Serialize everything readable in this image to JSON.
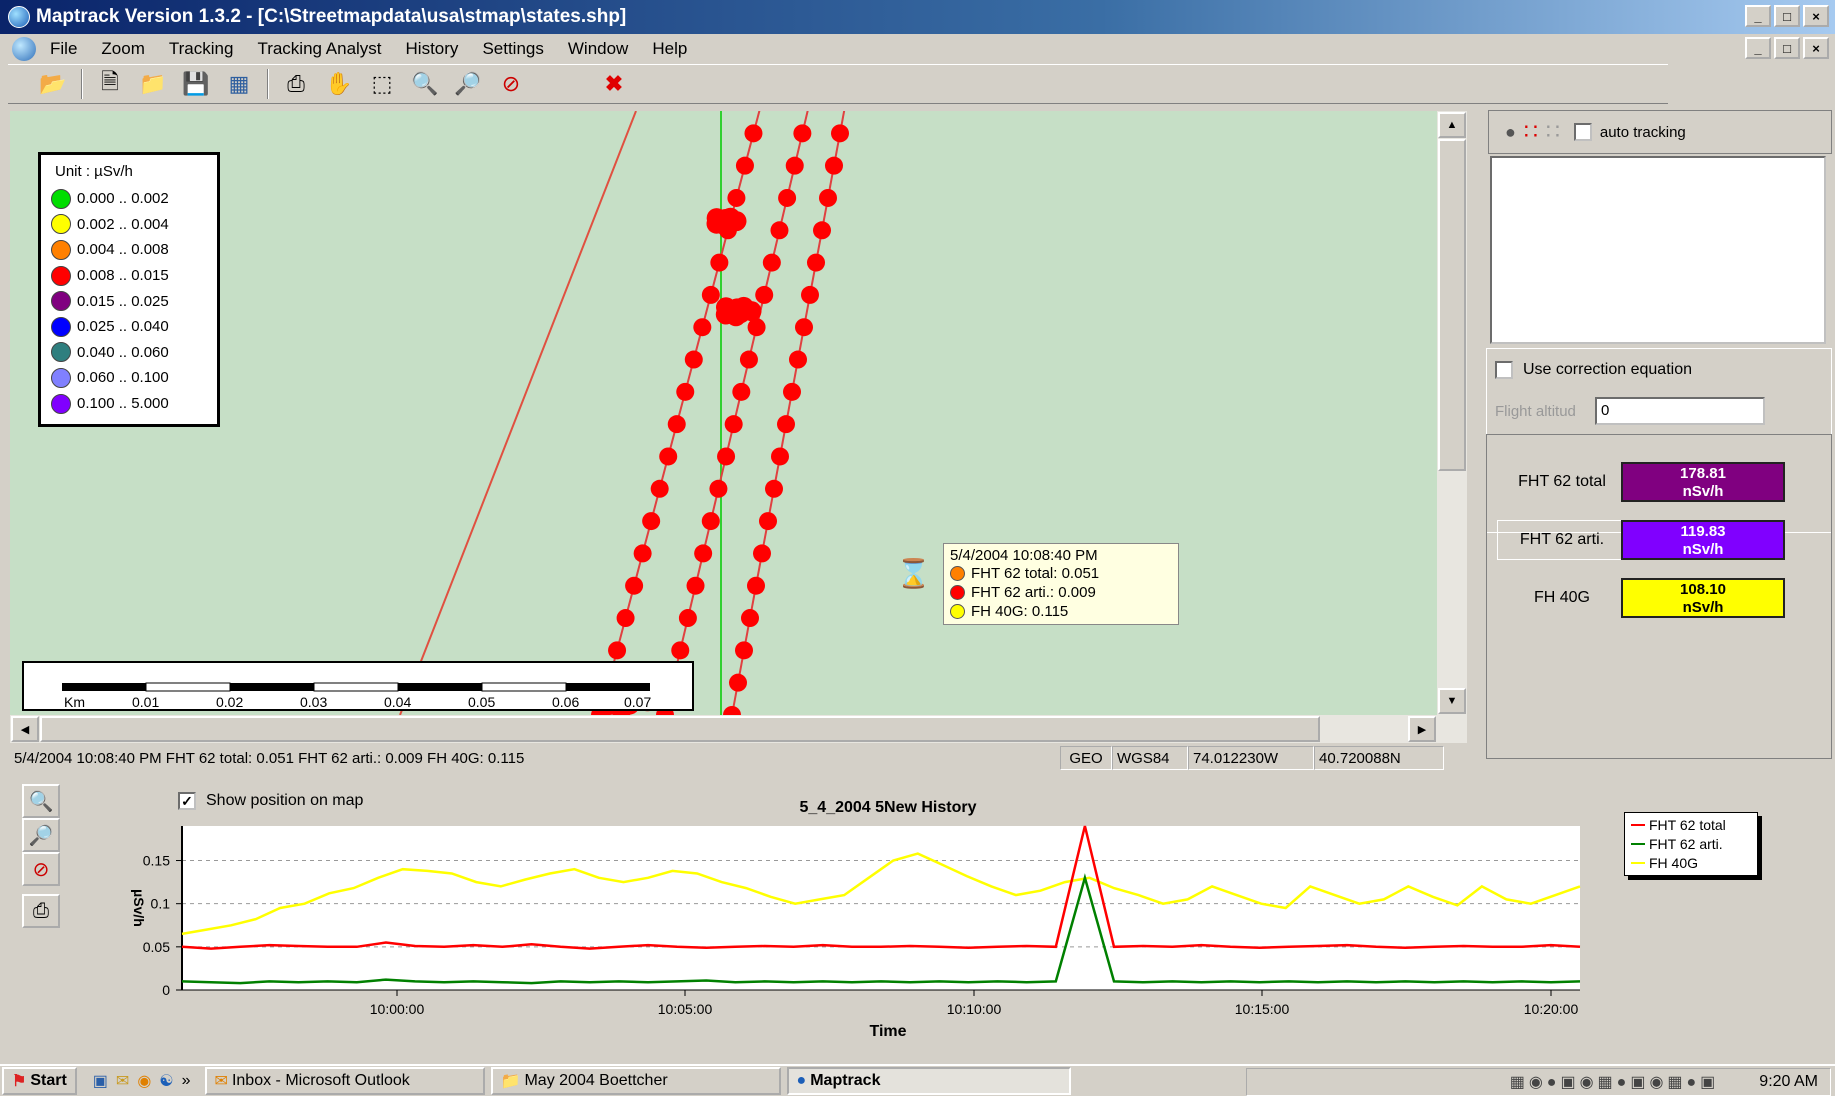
{
  "window": {
    "title": "Maptrack Version 1.3.2 - [C:\\Streetmapdata\\usa\\stmap\\states.shp]",
    "buttons": [
      "_",
      "□",
      "×"
    ]
  },
  "menu": [
    "File",
    "Zoom",
    "Tracking",
    "Tracking Analyst",
    "History",
    "Settings",
    "Window",
    "Help"
  ],
  "toolbar": {
    "icons": [
      "open-icon",
      "new-icon",
      "folder-icon",
      "save-icon",
      "layers-icon",
      "print-icon",
      "pan-hand-icon",
      "select-rect-icon",
      "zoom-in-icon",
      "zoom-out-icon",
      "zoom-cancel-icon",
      "delete-x-icon"
    ]
  },
  "legend": {
    "unit": "Unit : µSv/h",
    "items": [
      {
        "label": "0.000 .. 0.002",
        "color": "#00dd00"
      },
      {
        "label": "0.002 .. 0.004",
        "color": "#ffff00"
      },
      {
        "label": "0.004 .. 0.008",
        "color": "#ff8000"
      },
      {
        "label": "0.008 .. 0.015",
        "color": "#ff0000"
      },
      {
        "label": "0.015 .. 0.025",
        "color": "#800080"
      },
      {
        "label": "0.025 .. 0.040",
        "color": "#0000ff"
      },
      {
        "label": "0.040 .. 0.060",
        "color": "#2f7f7f"
      },
      {
        "label": "0.060 .. 0.100",
        "color": "#8080ff"
      },
      {
        "label": "0.100 .. 5.000",
        "color": "#8000ff"
      }
    ]
  },
  "scalebar": {
    "unit": "Km",
    "ticks": [
      "0.01",
      "0.02",
      "0.03",
      "0.04",
      "0.05",
      "0.06",
      "0.07"
    ]
  },
  "tooltip": {
    "time": "5/4/2004 10:08:40 PM",
    "rows": [
      {
        "text": "FHT 62 total: 0.051",
        "color": "#ff8000"
      },
      {
        "text": "FHT 62 arti.: 0.009",
        "color": "#ff0000"
      },
      {
        "text": "FH 40G: 0.115",
        "color": "#ffff00"
      }
    ]
  },
  "statusbar": {
    "reading": "5/4/2004 10:08:40 PM  FHT 62 total: 0.051  FHT 62 arti.: 0.009  FH 40G: 0.115",
    "projection": "GEO",
    "datum": "WGS84",
    "longitude": "74.012230W",
    "latitude": "40.720088N"
  },
  "right_panel": {
    "auto_tracking_label": "auto tracking",
    "auto_tracking_checked": false,
    "use_correction_label": "Use correction equation",
    "use_correction_checked": false,
    "flight_altitude_label": "Flight altitud",
    "flight_altitude_value": "0",
    "readings": [
      {
        "label": "FHT 62 total",
        "value": "178.81",
        "unit": "nSv/h",
        "bg": "#800080",
        "fg": "#ffffff"
      },
      {
        "label": "FHT 62 arti.",
        "value": "119.83",
        "unit": "nSv/h",
        "bg": "#8000ff",
        "fg": "#ffffff"
      },
      {
        "label": "FH 40G",
        "value": "108.10",
        "unit": "nSv/h",
        "bg": "#ffff00",
        "fg": "#000000"
      }
    ]
  },
  "history": {
    "show_position_label": "Show position on map",
    "show_position_checked": true
  },
  "chart_data": {
    "type": "line",
    "title": "5_4_2004 5New History",
    "xlabel": "Time",
    "ylabel": "µSv/h",
    "x_ticks": [
      "10:00:00",
      "10:05:00",
      "10:10:00",
      "10:15:00",
      "10:20:00"
    ],
    "y_ticks": [
      "0",
      "0.05",
      "0.1",
      "0.15"
    ],
    "xlim_minutes_since_start": [
      0,
      24
    ],
    "ylim": [
      0,
      0.19
    ],
    "legend_position": "top-right",
    "grid": true,
    "series": [
      {
        "name": "FHT 62 total",
        "color": "#ff0000",
        "values": [
          0.05,
          0.048,
          0.05,
          0.052,
          0.051,
          0.05,
          0.05,
          0.055,
          0.051,
          0.05,
          0.052,
          0.05,
          0.053,
          0.05,
          0.048,
          0.05,
          0.052,
          0.05,
          0.049,
          0.05,
          0.051,
          0.05,
          0.052,
          0.05,
          0.05,
          0.051,
          0.05,
          0.049,
          0.05,
          0.051,
          0.05,
          0.19,
          0.05,
          0.051,
          0.05,
          0.052,
          0.05,
          0.049,
          0.05,
          0.051,
          0.052,
          0.05,
          0.049,
          0.05,
          0.051,
          0.05,
          0.05,
          0.052,
          0.05
        ]
      },
      {
        "name": "FHT 62 arti.",
        "color": "#008000",
        "values": [
          0.01,
          0.009,
          0.008,
          0.01,
          0.009,
          0.01,
          0.009,
          0.012,
          0.01,
          0.009,
          0.01,
          0.009,
          0.008,
          0.01,
          0.009,
          0.01,
          0.009,
          0.01,
          0.011,
          0.009,
          0.01,
          0.009,
          0.01,
          0.009,
          0.01,
          0.009,
          0.01,
          0.009,
          0.01,
          0.009,
          0.01,
          0.13,
          0.01,
          0.009,
          0.01,
          0.009,
          0.01,
          0.009,
          0.01,
          0.009,
          0.01,
          0.009,
          0.01,
          0.009,
          0.01,
          0.009,
          0.01,
          0.009,
          0.01
        ]
      },
      {
        "name": "FH 40G",
        "color": "#ffff00",
        "values": [
          0.065,
          0.07,
          0.075,
          0.082,
          0.095,
          0.1,
          0.112,
          0.118,
          0.13,
          0.14,
          0.138,
          0.135,
          0.125,
          0.12,
          0.128,
          0.135,
          0.14,
          0.13,
          0.125,
          0.13,
          0.138,
          0.135,
          0.125,
          0.118,
          0.108,
          0.1,
          0.105,
          0.11,
          0.13,
          0.15,
          0.158,
          0.145,
          0.132,
          0.12,
          0.11,
          0.115,
          0.125,
          0.13,
          0.118,
          0.11,
          0.1,
          0.105,
          0.12,
          0.11,
          0.1,
          0.095,
          0.12,
          0.11,
          0.1,
          0.105,
          0.12,
          0.108,
          0.098,
          0.12,
          0.105,
          0.1,
          0.11,
          0.12
        ]
      }
    ]
  },
  "taskbar": {
    "start_label": "Start",
    "tasks": [
      {
        "label": "Inbox - Microsoft Outlook",
        "active": false
      },
      {
        "label": "May 2004 Boettcher",
        "active": false
      },
      {
        "label": "Maptrack",
        "active": true
      }
    ],
    "clock": "9:20 AM"
  }
}
